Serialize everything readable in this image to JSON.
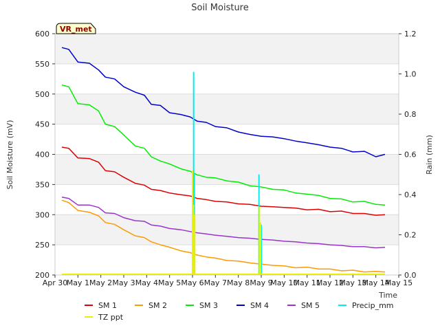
{
  "chart_data": {
    "type": "line",
    "title": "Soil Moisture",
    "badge": "VR_met",
    "xlabel": "Time",
    "ylabel_left": "Soil Moisture (mV)",
    "ylabel_right": "Rain (mm)",
    "xlim": [
      0,
      15
    ],
    "ylim_left": [
      200,
      600
    ],
    "ylim_right": [
      0,
      1.2
    ],
    "x_ticks": [
      {
        "x": 0,
        "label": "Apr 30"
      },
      {
        "x": 1,
        "label": "May 1"
      },
      {
        "x": 2,
        "label": "May 2"
      },
      {
        "x": 3,
        "label": "May 3"
      },
      {
        "x": 4,
        "label": "May 4"
      },
      {
        "x": 5,
        "label": "May 5"
      },
      {
        "x": 6,
        "label": "May 6"
      },
      {
        "x": 7,
        "label": "May 7"
      },
      {
        "x": 8,
        "label": "May 8"
      },
      {
        "x": 9,
        "label": "May 9"
      },
      {
        "x": 10,
        "label": "May 10"
      },
      {
        "x": 11,
        "label": "May 11"
      },
      {
        "x": 12,
        "label": "May 12"
      },
      {
        "x": 13,
        "label": "May 13"
      },
      {
        "x": 14,
        "label": "May 14"
      },
      {
        "x": 15,
        "label": "May 15"
      }
    ],
    "y_ticks_left": [
      {
        "v": 200,
        "label": "200"
      },
      {
        "v": 250,
        "label": "250"
      },
      {
        "v": 300,
        "label": "300"
      },
      {
        "v": 350,
        "label": "350"
      },
      {
        "v": 400,
        "label": "400"
      },
      {
        "v": 450,
        "label": "450"
      },
      {
        "v": 500,
        "label": "500"
      },
      {
        "v": 550,
        "label": "550"
      },
      {
        "v": 600,
        "label": "600"
      }
    ],
    "y_ticks_right": [
      {
        "v": 0.0,
        "label": "0.0"
      },
      {
        "v": 0.2,
        "label": "0.2"
      },
      {
        "v": 0.4,
        "label": "0.4"
      },
      {
        "v": 0.6,
        "label": "0.6"
      },
      {
        "v": 0.8,
        "label": "0.8"
      },
      {
        "v": 1.0,
        "label": "1.0"
      },
      {
        "v": 1.2,
        "label": "1.2"
      }
    ],
    "series": [
      {
        "name": "SM 1",
        "color": "#dd0000",
        "axis": "left",
        "x": [
          0.3,
          0.6,
          1.0,
          1.5,
          1.9,
          2.2,
          2.6,
          3.0,
          3.5,
          3.9,
          4.2,
          4.6,
          5.0,
          5.5,
          5.9,
          6.2,
          6.6,
          7.0,
          7.5,
          8.0,
          8.5,
          9.0,
          9.5,
          10.0,
          10.5,
          11.0,
          11.5,
          12.0,
          12.5,
          13.0,
          13.5,
          14.0,
          14.4
        ],
        "values": [
          412,
          410,
          394,
          393,
          387,
          373,
          371,
          362,
          352,
          349,
          342,
          340,
          336,
          333,
          331,
          327,
          325,
          322,
          321,
          318,
          317,
          314,
          313,
          312,
          311,
          308,
          309,
          305,
          306,
          302,
          302,
          299,
          300
        ]
      },
      {
        "name": "SM 2",
        "color": "#ff9900",
        "axis": "left",
        "x": [
          0.3,
          0.6,
          1.0,
          1.5,
          1.9,
          2.2,
          2.6,
          3.0,
          3.5,
          3.9,
          4.2,
          4.6,
          5.0,
          5.5,
          5.9,
          6.2,
          6.6,
          7.0,
          7.5,
          8.0,
          8.5,
          9.0,
          9.5,
          10.0,
          10.5,
          11.0,
          11.5,
          12.0,
          12.5,
          13.0,
          13.5,
          14.0,
          14.4
        ],
        "values": [
          324,
          320,
          307,
          304,
          298,
          287,
          284,
          275,
          265,
          262,
          255,
          250,
          246,
          240,
          237,
          233,
          230,
          228,
          224,
          223,
          220,
          218,
          216,
          215,
          212,
          213,
          210,
          210,
          207,
          208,
          205,
          206,
          205
        ]
      },
      {
        "name": "SM 3",
        "color": "#00ee00",
        "axis": "left",
        "x": [
          0.3,
          0.6,
          1.0,
          1.5,
          1.9,
          2.2,
          2.6,
          3.0,
          3.5,
          3.9,
          4.2,
          4.6,
          5.0,
          5.5,
          5.9,
          6.2,
          6.6,
          7.0,
          7.5,
          8.0,
          8.5,
          9.0,
          9.5,
          10.0,
          10.5,
          11.0,
          11.5,
          12.0,
          12.5,
          13.0,
          13.5,
          14.0,
          14.4
        ],
        "values": [
          515,
          512,
          484,
          482,
          472,
          450,
          446,
          432,
          414,
          410,
          396,
          389,
          384,
          376,
          372,
          366,
          362,
          361,
          356,
          354,
          348,
          346,
          342,
          341,
          336,
          334,
          332,
          327,
          326,
          321,
          322,
          317,
          316
        ]
      },
      {
        "name": "SM 4",
        "color": "#0000cc",
        "axis": "left",
        "x": [
          0.3,
          0.6,
          1.0,
          1.5,
          1.9,
          2.2,
          2.6,
          3.0,
          3.5,
          3.9,
          4.2,
          4.6,
          5.0,
          5.5,
          5.9,
          6.2,
          6.6,
          7.0,
          7.5,
          8.0,
          8.5,
          9.0,
          9.5,
          10.0,
          10.5,
          11.0,
          11.5,
          12.0,
          12.5,
          13.0,
          13.5,
          14.0,
          14.4
        ],
        "values": [
          577,
          574,
          553,
          551,
          540,
          528,
          525,
          512,
          503,
          498,
          483,
          481,
          469,
          466,
          462,
          455,
          453,
          446,
          444,
          437,
          433,
          430,
          429,
          426,
          422,
          419,
          416,
          412,
          410,
          404,
          405,
          396,
          400
        ]
      },
      {
        "name": "SM 5",
        "color": "#9933cc",
        "axis": "left",
        "x": [
          0.3,
          0.6,
          1.0,
          1.5,
          1.9,
          2.2,
          2.6,
          3.0,
          3.5,
          3.9,
          4.2,
          4.6,
          5.0,
          5.5,
          5.9,
          6.2,
          6.6,
          7.0,
          7.5,
          8.0,
          8.5,
          9.0,
          9.5,
          10.0,
          10.5,
          11.0,
          11.5,
          12.0,
          12.5,
          13.0,
          13.5,
          14.0,
          14.4
        ],
        "values": [
          329,
          327,
          316,
          316,
          312,
          303,
          302,
          295,
          290,
          289,
          283,
          281,
          277,
          275,
          272,
          270,
          268,
          266,
          264,
          262,
          261,
          259,
          258,
          256,
          255,
          253,
          252,
          250,
          249,
          247,
          247,
          245,
          246
        ]
      },
      {
        "name": "Precip_mm",
        "color": "#00eeee",
        "axis": "right",
        "style": "bars",
        "x": [
          6.05,
          6.08,
          8.9,
          9.0
        ],
        "values": [
          1.01,
          0.5,
          0.5,
          0.25
        ]
      },
      {
        "name": "TZ ppt",
        "color": "#eeee00",
        "axis": "right",
        "style": "bars",
        "x": [
          6.0,
          6.04,
          6.1,
          8.92,
          8.97
        ],
        "values": [
          0.52,
          0.35,
          0.3,
          0.34,
          0.26
        ]
      }
    ],
    "legend": [
      "SM 1",
      "SM 2",
      "SM 3",
      "SM 4",
      "SM 5",
      "Precip_mm",
      "TZ ppt"
    ],
    "legend_position": "bottom",
    "grid": true
  }
}
